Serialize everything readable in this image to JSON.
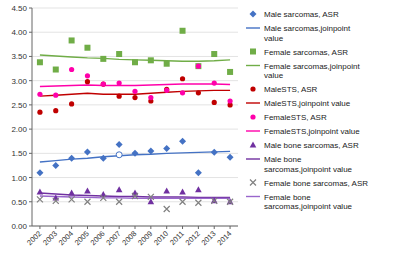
{
  "chart_data": {
    "type": "line",
    "x": [
      2002,
      2003,
      2004,
      2005,
      2006,
      2007,
      2008,
      2009,
      2010,
      2011,
      2012,
      2013,
      2014
    ],
    "xlim": [
      2001.5,
      2014.5
    ],
    "xticks": [
      2002,
      2003,
      2004,
      2005,
      2006,
      2007,
      2008,
      2009,
      2010,
      2011,
      2012,
      2013,
      2014
    ],
    "ylim": [
      0.0,
      4.5
    ],
    "yticks": [
      {
        "value": 0.0,
        "label": "0.00"
      },
      {
        "value": 0.5,
        "label": "0.50"
      },
      {
        "value": 1.0,
        "label": "1.00"
      },
      {
        "value": 1.5,
        "label": "1.50"
      },
      {
        "value": 2.0,
        "label": "2.00"
      },
      {
        "value": 2.5,
        "label": "2.50"
      },
      {
        "value": 3.0,
        "label": "3.00"
      },
      {
        "value": 3.5,
        "label": "3.50"
      },
      {
        "value": 4.0,
        "label": "4.00"
      },
      {
        "value": 4.5,
        "label": "4.50"
      }
    ],
    "grid": true,
    "legend": "right",
    "series": [
      {
        "name": "Male sarcomas, ASR",
        "type": "scatter",
        "marker": "diamond",
        "color": "#4472c4",
        "values": [
          1.1,
          1.25,
          1.4,
          1.53,
          1.4,
          1.68,
          1.5,
          1.55,
          1.6,
          1.75,
          1.1,
          1.52,
          1.42
        ]
      },
      {
        "name": "Male sarcomas,joinpoint\nvalue",
        "type": "line",
        "line_style": "solid",
        "color": "#4472c4",
        "values": [
          1.32,
          1.35,
          1.38,
          1.4,
          1.43,
          1.45,
          1.47,
          1.48,
          1.5,
          1.51,
          1.52,
          1.53,
          1.54
        ]
      },
      {
        "name": "Female sarcomas, ASR",
        "type": "scatter",
        "marker": "square",
        "color": "#70ad47",
        "values": [
          3.38,
          3.23,
          3.83,
          3.68,
          3.45,
          3.55,
          3.38,
          3.42,
          3.35,
          4.03,
          3.3,
          3.55,
          3.18
        ]
      },
      {
        "name": "Female sarcomas,joinpoint\nvalue",
        "type": "line",
        "line_style": "solid",
        "color": "#70ad47",
        "values": [
          3.53,
          3.51,
          3.49,
          3.47,
          3.46,
          3.44,
          3.43,
          3.42,
          3.41,
          3.4,
          3.4,
          3.41,
          3.43
        ]
      },
      {
        "name": "MaleSTS, ASR",
        "type": "scatter",
        "marker": "circle",
        "color": "#c00000",
        "values": [
          2.35,
          2.38,
          2.52,
          2.98,
          2.93,
          2.68,
          2.65,
          2.58,
          2.82,
          3.04,
          2.75,
          2.55,
          2.5
        ]
      },
      {
        "name": "MaleSTS,joinpoint value",
        "type": "line",
        "line_style": "solid",
        "color": "#c00000",
        "values": [
          2.68,
          2.7,
          2.72,
          2.74,
          2.72,
          2.72,
          2.72,
          2.74,
          2.76,
          2.78,
          2.79,
          2.8,
          2.8
        ]
      },
      {
        "name": "FemaleSTS, ASR",
        "type": "scatter",
        "marker": "circle",
        "color": "#ff00aa",
        "values": [
          2.72,
          2.7,
          3.23,
          3.1,
          2.93,
          2.95,
          2.78,
          2.65,
          2.8,
          2.75,
          3.3,
          2.95,
          2.58
        ]
      },
      {
        "name": "FemaleSTS,joinpoint value",
        "type": "line",
        "line_style": "solid",
        "color": "#ff00aa",
        "values": [
          2.88,
          2.89,
          2.9,
          2.91,
          2.9,
          2.9,
          2.9,
          2.91,
          2.92,
          2.93,
          2.93,
          2.93,
          2.92
        ]
      },
      {
        "name": "Male bone sarcomas, ASR",
        "type": "scatter",
        "marker": "triangle",
        "color": "#7030a0",
        "values": [
          0.7,
          0.58,
          0.68,
          0.72,
          0.65,
          0.75,
          0.68,
          0.5,
          0.72,
          0.7,
          0.75,
          0.52,
          0.5
        ]
      },
      {
        "name": "Male bone\nsarcomas,joinpoint value",
        "type": "line",
        "line_style": "solid",
        "color": "#7030a0",
        "values": [
          0.68,
          0.66,
          0.64,
          0.63,
          0.62,
          0.61,
          0.61,
          0.6,
          0.6,
          0.6,
          0.59,
          0.59,
          0.59
        ]
      },
      {
        "name": "Female bone sarcomas, ASR",
        "type": "scatter",
        "marker": "x",
        "color": "#808080",
        "values": [
          0.55,
          0.52,
          0.55,
          0.5,
          0.58,
          0.5,
          0.62,
          0.6,
          0.35,
          0.5,
          0.48,
          0.52,
          0.5
        ]
      },
      {
        "name": "Female bone\nsarcomas,joinpoint value",
        "type": "line",
        "line_style": "solid",
        "color": "#9966cc",
        "values": [
          0.62,
          0.61,
          0.6,
          0.59,
          0.58,
          0.58,
          0.57,
          0.57,
          0.57,
          0.57,
          0.57,
          0.57,
          0.57
        ]
      },
      {
        "type": "scatter",
        "marker": "open-circle",
        "color": "#4472c4",
        "values": [
          null,
          null,
          null,
          null,
          null,
          1.47,
          null,
          null,
          null,
          null,
          null,
          null,
          null
        ]
      }
    ]
  }
}
